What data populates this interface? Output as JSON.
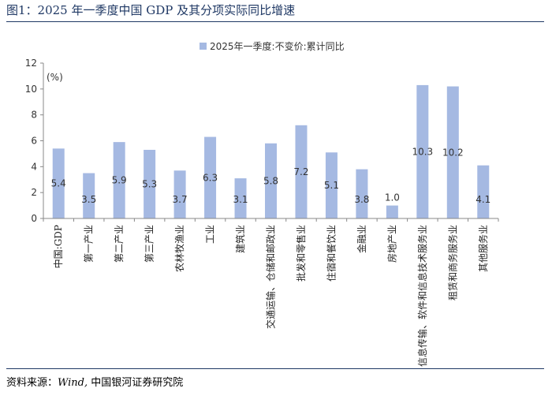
{
  "figure": {
    "title": "图1：2025 年一季度中国 GDP 及其分项实际同比增速",
    "source_prefix": "资料来源：",
    "source_latin": "Wind,",
    "source_suffix": "  中国银河证券研究院"
  },
  "colors": {
    "bar": "#a5b9e2",
    "title": "#1f3864",
    "rule": "#1f3864",
    "axis": "#888888"
  },
  "chart_data": {
    "type": "bar",
    "title": "",
    "ylabel": "(%)",
    "xlabel": "",
    "ylim": [
      0,
      12
    ],
    "yticks": [
      0,
      2,
      4,
      6,
      8,
      10,
      12
    ],
    "grid": false,
    "legend": "top-center",
    "series": [
      {
        "name": "2025年一季度:不变价:累计同比",
        "values": [
          5.4,
          3.5,
          5.9,
          5.3,
          3.7,
          6.3,
          3.1,
          5.8,
          7.2,
          5.1,
          3.8,
          1.0,
          10.3,
          10.2,
          4.1
        ]
      }
    ],
    "data_labels": [
      "5.4",
      "3.5",
      "5.9",
      "5.3",
      "3.7",
      "6.3",
      "3.1",
      "5.8",
      "7.2",
      "5.1",
      "3.8",
      "1.0",
      "10.3",
      "10.2",
      "4.1"
    ],
    "categories": [
      "中国:GDP",
      "第一产业",
      "第二产业",
      "第三产业",
      "农林牧渔业",
      "工业",
      "建筑业",
      "交通运输、仓储和邮政业",
      "批发和零售业",
      "住宿和餐饮业",
      "金融业",
      "房地产业",
      "信息传输、软件和信息技术服务业",
      "租赁和商务服务业",
      "其他服务业"
    ]
  }
}
